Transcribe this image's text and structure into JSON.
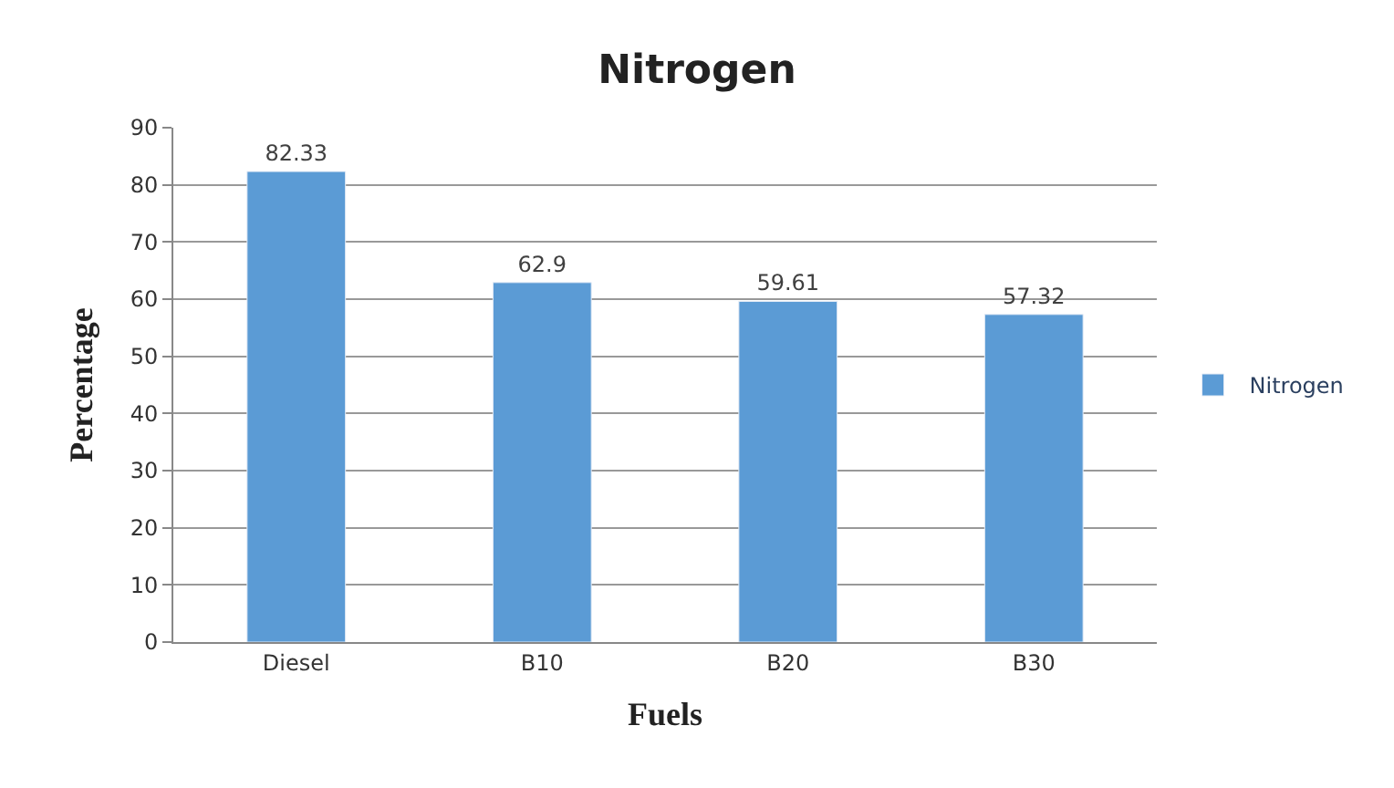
{
  "chart_data": {
    "type": "bar",
    "title": "Nitrogen",
    "xlabel": "Fuels",
    "ylabel": "Percentage",
    "categories": [
      "Diesel",
      "B10",
      "B20",
      "B30"
    ],
    "series": [
      {
        "name": "Nitrogen",
        "color": "#5b9bd5",
        "values": [
          82.33,
          62.9,
          59.61,
          57.32
        ]
      }
    ],
    "ylim": [
      0,
      90
    ],
    "yticks": [
      0,
      10,
      20,
      30,
      40,
      50,
      60,
      70,
      80,
      90
    ],
    "grid": "y",
    "legend": "right",
    "data_labels": true
  }
}
